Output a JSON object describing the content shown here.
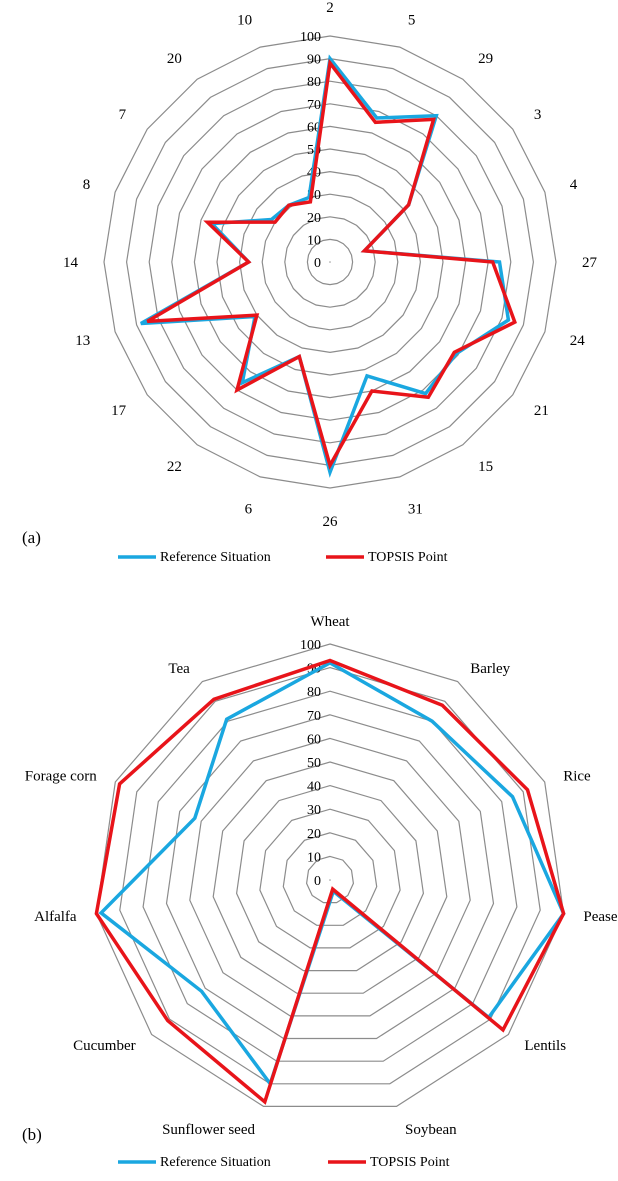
{
  "chart_data": [
    {
      "type": "radar",
      "panel_label": "(a)",
      "title": "",
      "categories": [
        "2",
        "5",
        "29",
        "3",
        "4",
        "27",
        "24",
        "21",
        "15",
        "31",
        "26",
        "6",
        "22",
        "17",
        "13",
        "14",
        "8",
        "7",
        "20",
        "10"
      ],
      "rlim": [
        0,
        100
      ],
      "ticks": [
        0,
        10,
        20,
        30,
        40,
        50,
        60,
        70,
        80,
        90,
        100
      ],
      "grid": true,
      "legend_position": "bottom",
      "series": [
        {
          "name": "Reference Situation",
          "color": "#1aa7e0",
          "values": [
            90,
            67,
            80,
            43,
            16,
            75,
            83,
            69,
            72,
            53,
            93,
            44,
            66,
            41,
            88,
            36,
            55,
            32,
            31,
            30
          ]
        },
        {
          "name": "TOPSIS Point",
          "color": "#e8141a",
          "values": [
            88,
            65,
            78,
            43,
            16,
            72,
            86,
            68,
            74,
            60,
            90,
            44,
            70,
            40,
            85,
            36,
            57,
            30,
            31,
            28
          ]
        }
      ]
    },
    {
      "type": "radar",
      "panel_label": "(b)",
      "title": "",
      "categories": [
        "Wheat",
        "Barley",
        "Rice",
        "Pease",
        "Lentils",
        "Soybean",
        "Sunflower seed",
        "Cucumber",
        "Alfalfa",
        "Forage corn",
        "Tea"
      ],
      "rlim": [
        0,
        100
      ],
      "ticks": [
        0,
        10,
        20,
        30,
        40,
        50,
        60,
        70,
        80,
        90,
        100
      ],
      "grid": true,
      "legend_position": "bottom",
      "series": [
        {
          "name": "Reference Situation",
          "color": "#1aa7e0",
          "values": [
            92,
            80,
            85,
            100,
            89,
            5,
            90,
            72,
            98,
            63,
            81
          ]
        },
        {
          "name": "TOPSIS Point",
          "color": "#e8141a",
          "values": [
            93,
            88,
            92,
            100,
            97,
            4,
            98,
            91,
            100,
            98,
            91
          ]
        }
      ]
    }
  ]
}
